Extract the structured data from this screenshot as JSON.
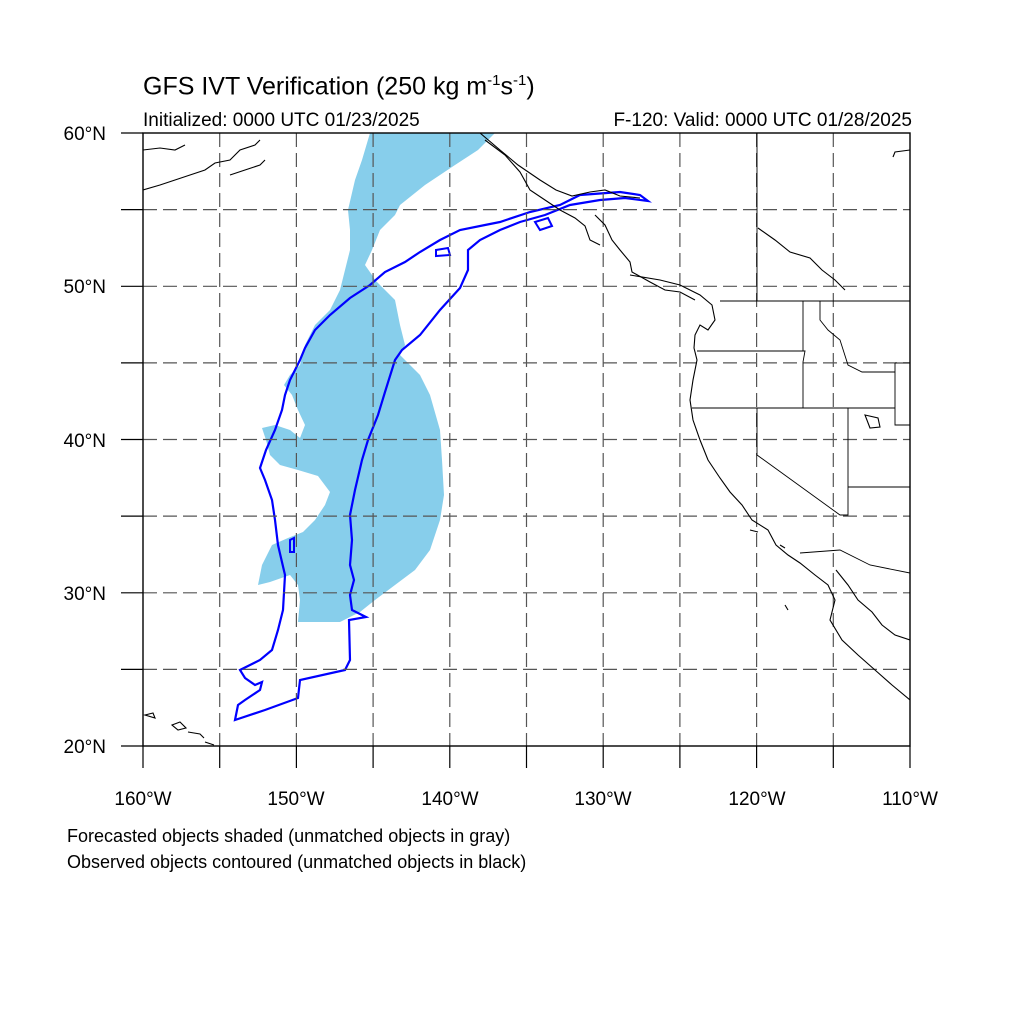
{
  "title": {
    "text_main": "GFS IVT Verification (250 kg m",
    "sup1": "-1",
    "text_mid": "s",
    "sup2": "-1",
    "text_end": ")"
  },
  "initialized": "Initialized: 0000 UTC 01/23/2025",
  "valid": "F-120: Valid: 0000 UTC 01/28/2025",
  "notes": {
    "line1": "Forecasted objects shaded (unmatched objects in gray)",
    "line2": "Observed objects contoured (unmatched objects in black)"
  },
  "axes": {
    "lat_labels": [
      "20°N",
      "30°N",
      "40°N",
      "50°N",
      "60°N"
    ],
    "lon_labels": [
      "160°W",
      "150°W",
      "140°W",
      "130°W",
      "120°W",
      "110°W"
    ],
    "lat_range": [
      20,
      60
    ],
    "lon_range": [
      -160,
      -110
    ],
    "grid": "dashed every 5 degrees"
  },
  "colors": {
    "forecast_fill": "#87ceeb",
    "observed_contour": "#0000ff",
    "coastline": "#000000"
  }
}
